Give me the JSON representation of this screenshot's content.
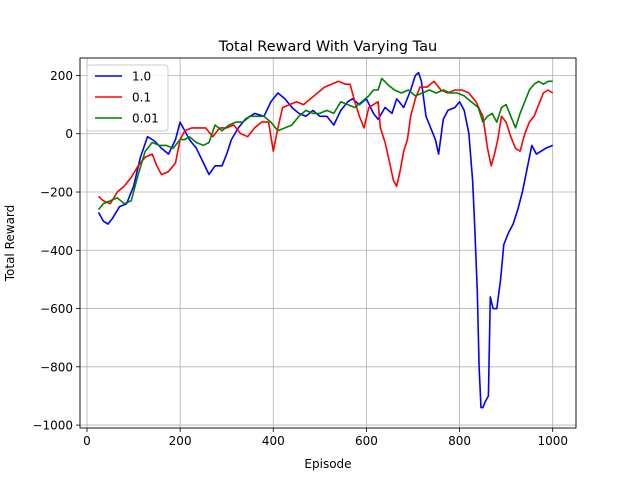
{
  "chart_data": {
    "type": "line",
    "title": "Total Reward With Varying Tau",
    "xlabel": "Episode",
    "ylabel": "Total Reward",
    "xlim": [
      -15,
      1050
    ],
    "ylim": [
      -1010,
      260
    ],
    "xticks": [
      0,
      200,
      400,
      600,
      800,
      1000
    ],
    "yticks": [
      -1000,
      -800,
      -600,
      -400,
      -200,
      0,
      200
    ],
    "xtick_labels": [
      "0",
      "200",
      "400",
      "600",
      "800",
      "1000"
    ],
    "ytick_labels": [
      "−1000",
      "−800",
      "−600",
      "−400",
      "−200",
      "0",
      "200"
    ],
    "grid": true,
    "legend_position": "upper-left",
    "series": [
      {
        "name": "1.0",
        "color": "#0000ff",
        "points": [
          [
            25,
            -270
          ],
          [
            35,
            -300
          ],
          [
            45,
            -310
          ],
          [
            55,
            -290
          ],
          [
            70,
            -250
          ],
          [
            85,
            -240
          ],
          [
            100,
            -180
          ],
          [
            115,
            -80
          ],
          [
            130,
            -10
          ],
          [
            145,
            -25
          ],
          [
            160,
            -50
          ],
          [
            175,
            -70
          ],
          [
            190,
            -20
          ],
          [
            200,
            40
          ],
          [
            210,
            10
          ],
          [
            220,
            -20
          ],
          [
            235,
            -50
          ],
          [
            250,
            -100
          ],
          [
            262,
            -140
          ],
          [
            275,
            -110
          ],
          [
            290,
            -110
          ],
          [
            300,
            -70
          ],
          [
            310,
            -20
          ],
          [
            325,
            20
          ],
          [
            340,
            50
          ],
          [
            360,
            70
          ],
          [
            380,
            60
          ],
          [
            395,
            110
          ],
          [
            410,
            140
          ],
          [
            425,
            120
          ],
          [
            440,
            90
          ],
          [
            455,
            70
          ],
          [
            470,
            60
          ],
          [
            485,
            80
          ],
          [
            500,
            60
          ],
          [
            515,
            60
          ],
          [
            530,
            30
          ],
          [
            545,
            80
          ],
          [
            560,
            110
          ],
          [
            570,
            120
          ],
          [
            585,
            100
          ],
          [
            600,
            120
          ],
          [
            615,
            70
          ],
          [
            625,
            50
          ],
          [
            640,
            90
          ],
          [
            655,
            70
          ],
          [
            665,
            120
          ],
          [
            680,
            90
          ],
          [
            695,
            150
          ],
          [
            705,
            200
          ],
          [
            712,
            210
          ],
          [
            718,
            180
          ],
          [
            728,
            60
          ],
          [
            738,
            20
          ],
          [
            748,
            -20
          ],
          [
            755,
            -70
          ],
          [
            765,
            50
          ],
          [
            775,
            80
          ],
          [
            790,
            90
          ],
          [
            800,
            110
          ],
          [
            810,
            80
          ],
          [
            820,
            0
          ],
          [
            828,
            -160
          ],
          [
            832,
            -300
          ],
          [
            838,
            -540
          ],
          [
            842,
            -800
          ],
          [
            846,
            -940
          ],
          [
            850,
            -940
          ],
          [
            855,
            -920
          ],
          [
            862,
            -900
          ],
          [
            866,
            -560
          ],
          [
            872,
            -600
          ],
          [
            880,
            -600
          ],
          [
            888,
            -500
          ],
          [
            895,
            -380
          ],
          [
            905,
            -340
          ],
          [
            915,
            -310
          ],
          [
            925,
            -260
          ],
          [
            935,
            -200
          ],
          [
            945,
            -120
          ],
          [
            955,
            -40
          ],
          [
            965,
            -70
          ],
          [
            975,
            -60
          ],
          [
            985,
            -50
          ],
          [
            1000,
            -40
          ]
        ]
      },
      {
        "name": "0.1",
        "color": "#ff0000",
        "points": [
          [
            25,
            -215
          ],
          [
            35,
            -230
          ],
          [
            50,
            -240
          ],
          [
            65,
            -200
          ],
          [
            80,
            -180
          ],
          [
            95,
            -150
          ],
          [
            110,
            -110
          ],
          [
            125,
            -80
          ],
          [
            140,
            -70
          ],
          [
            150,
            -110
          ],
          [
            160,
            -140
          ],
          [
            175,
            -130
          ],
          [
            190,
            -100
          ],
          [
            200,
            -20
          ],
          [
            210,
            10
          ],
          [
            225,
            20
          ],
          [
            240,
            20
          ],
          [
            255,
            20
          ],
          [
            270,
            -10
          ],
          [
            285,
            20
          ],
          [
            300,
            20
          ],
          [
            315,
            30
          ],
          [
            330,
            0
          ],
          [
            345,
            -10
          ],
          [
            360,
            20
          ],
          [
            375,
            40
          ],
          [
            390,
            40
          ],
          [
            400,
            -60
          ],
          [
            410,
            20
          ],
          [
            420,
            90
          ],
          [
            435,
            100
          ],
          [
            450,
            110
          ],
          [
            465,
            100
          ],
          [
            480,
            120
          ],
          [
            495,
            140
          ],
          [
            510,
            160
          ],
          [
            525,
            170
          ],
          [
            540,
            180
          ],
          [
            555,
            170
          ],
          [
            565,
            170
          ],
          [
            575,
            110
          ],
          [
            585,
            60
          ],
          [
            595,
            20
          ],
          [
            605,
            90
          ],
          [
            615,
            100
          ],
          [
            625,
            110
          ],
          [
            630,
            20
          ],
          [
            640,
            -30
          ],
          [
            650,
            -100
          ],
          [
            658,
            -160
          ],
          [
            665,
            -180
          ],
          [
            672,
            -130
          ],
          [
            680,
            -60
          ],
          [
            688,
            -20
          ],
          [
            695,
            60
          ],
          [
            705,
            120
          ],
          [
            715,
            160
          ],
          [
            730,
            160
          ],
          [
            745,
            180
          ],
          [
            760,
            150
          ],
          [
            775,
            140
          ],
          [
            790,
            150
          ],
          [
            805,
            150
          ],
          [
            820,
            140
          ],
          [
            835,
            110
          ],
          [
            850,
            60
          ],
          [
            860,
            -50
          ],
          [
            868,
            -110
          ],
          [
            875,
            -70
          ],
          [
            882,
            -20
          ],
          [
            890,
            60
          ],
          [
            900,
            40
          ],
          [
            910,
            -10
          ],
          [
            920,
            -50
          ],
          [
            930,
            -60
          ],
          [
            940,
            0
          ],
          [
            950,
            40
          ],
          [
            960,
            60
          ],
          [
            970,
            100
          ],
          [
            980,
            140
          ],
          [
            990,
            150
          ],
          [
            1000,
            140
          ]
        ]
      },
      {
        "name": "0.01",
        "color": "#008000",
        "points": [
          [
            25,
            -260
          ],
          [
            35,
            -240
          ],
          [
            50,
            -230
          ],
          [
            65,
            -220
          ],
          [
            80,
            -240
          ],
          [
            95,
            -230
          ],
          [
            110,
            -140
          ],
          [
            125,
            -60
          ],
          [
            140,
            -30
          ],
          [
            155,
            -40
          ],
          [
            170,
            -40
          ],
          [
            185,
            -50
          ],
          [
            200,
            -20
          ],
          [
            210,
            -20
          ],
          [
            220,
            -10
          ],
          [
            235,
            -30
          ],
          [
            250,
            -40
          ],
          [
            262,
            -30
          ],
          [
            275,
            30
          ],
          [
            290,
            10
          ],
          [
            305,
            30
          ],
          [
            320,
            40
          ],
          [
            335,
            40
          ],
          [
            350,
            60
          ],
          [
            365,
            60
          ],
          [
            380,
            60
          ],
          [
            395,
            40
          ],
          [
            410,
            10
          ],
          [
            425,
            20
          ],
          [
            440,
            30
          ],
          [
            455,
            60
          ],
          [
            470,
            80
          ],
          [
            485,
            70
          ],
          [
            500,
            70
          ],
          [
            515,
            80
          ],
          [
            530,
            70
          ],
          [
            545,
            110
          ],
          [
            560,
            100
          ],
          [
            575,
            90
          ],
          [
            590,
            110
          ],
          [
            605,
            130
          ],
          [
            615,
            150
          ],
          [
            625,
            150
          ],
          [
            633,
            190
          ],
          [
            645,
            170
          ],
          [
            660,
            150
          ],
          [
            675,
            140
          ],
          [
            690,
            150
          ],
          [
            705,
            130
          ],
          [
            720,
            140
          ],
          [
            735,
            150
          ],
          [
            750,
            140
          ],
          [
            765,
            150
          ],
          [
            780,
            140
          ],
          [
            795,
            140
          ],
          [
            810,
            130
          ],
          [
            825,
            110
          ],
          [
            840,
            90
          ],
          [
            850,
            40
          ],
          [
            860,
            60
          ],
          [
            870,
            70
          ],
          [
            880,
            40
          ],
          [
            890,
            90
          ],
          [
            900,
            100
          ],
          [
            910,
            60
          ],
          [
            920,
            20
          ],
          [
            930,
            70
          ],
          [
            940,
            110
          ],
          [
            950,
            150
          ],
          [
            960,
            170
          ],
          [
            970,
            180
          ],
          [
            980,
            170
          ],
          [
            990,
            180
          ],
          [
            1000,
            180
          ]
        ]
      }
    ]
  }
}
